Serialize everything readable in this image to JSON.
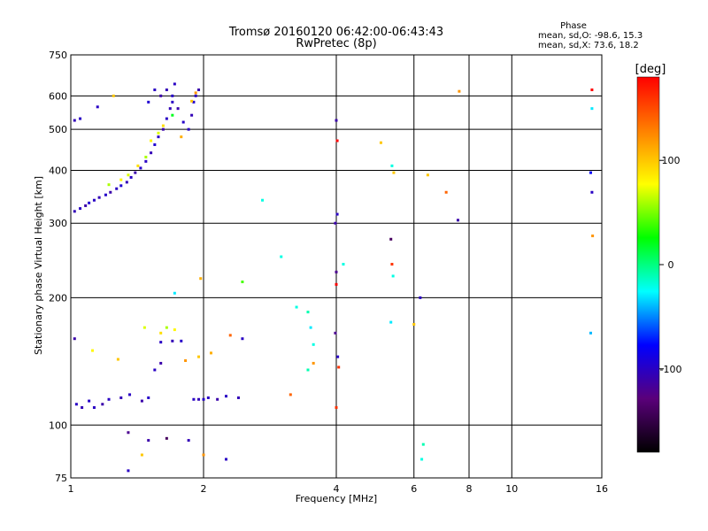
{
  "chart_data": {
    "type": "scatter",
    "title": "Tromsø 20160120 06:42:00-06:43:43",
    "subtitle": "RwPretec (8p)",
    "xlabel": "Frequency [MHz]",
    "ylabel": "Stationary phase Virtual Height [km]",
    "x_scale": "log",
    "y_scale": "log",
    "xlim": [
      1,
      16
    ],
    "ylim": [
      75,
      750
    ],
    "x_ticks": [
      1,
      2,
      4,
      6,
      8,
      10,
      16
    ],
    "x_tick_labels": [
      "1",
      "2",
      "4",
      "6",
      "8",
      "10",
      "16"
    ],
    "y_ticks": [
      75,
      100,
      200,
      300,
      400,
      500,
      600,
      750
    ],
    "y_tick_labels": [
      "75",
      "100",
      "200",
      "300",
      "400",
      "500",
      "600",
      "750"
    ],
    "grid": true,
    "phase_stats": {
      "heading": "Phase",
      "o_line": "mean, sd,O:  -98.6, 15.3",
      "x_line": "mean, sd,X:  73.6, 18.2"
    },
    "colorbar": {
      "label": "[deg]",
      "range": [
        -180,
        180
      ],
      "ticks": [
        100,
        0,
        -100
      ],
      "tick_labels": [
        "100",
        "0",
        "-100"
      ],
      "stops": [
        "#000000",
        "#5a007a",
        "#0000ff",
        "#00ffff",
        "#00ff00",
        "#ffff00",
        "#ff8000",
        "#ff0000"
      ]
    },
    "series": [
      {
        "points": [
          [
            1.02,
            320,
            -105
          ],
          [
            1.05,
            325,
            -100
          ],
          [
            1.08,
            330,
            -110
          ],
          [
            1.1,
            335,
            -95
          ],
          [
            1.13,
            340,
            -100
          ],
          [
            1.16,
            345,
            -105
          ],
          [
            1.2,
            350,
            -98
          ],
          [
            1.23,
            355,
            -110
          ],
          [
            1.27,
            362,
            -100
          ],
          [
            1.3,
            368,
            -95
          ],
          [
            1.34,
            375,
            -105
          ],
          [
            1.37,
            385,
            -100
          ],
          [
            1.4,
            395,
            -110
          ],
          [
            1.44,
            405,
            -98
          ],
          [
            1.48,
            420,
            -100
          ],
          [
            1.52,
            440,
            -105
          ],
          [
            1.55,
            460,
            -95
          ],
          [
            1.58,
            480,
            -100
          ],
          [
            1.62,
            500,
            -110
          ],
          [
            1.65,
            530,
            -100
          ],
          [
            1.68,
            560,
            -105
          ],
          [
            1.7,
            600,
            -98
          ],
          [
            1.72,
            640,
            -100
          ],
          [
            1.6,
            600,
            -110
          ],
          [
            1.55,
            620,
            -100
          ],
          [
            1.5,
            580,
            -95
          ],
          [
            1.65,
            620,
            -105
          ],
          [
            1.7,
            580,
            -100
          ],
          [
            1.75,
            560,
            -110
          ],
          [
            1.8,
            520,
            -98
          ],
          [
            1.85,
            500,
            -100
          ],
          [
            1.88,
            540,
            -105
          ],
          [
            1.9,
            580,
            -95
          ],
          [
            1.92,
            600,
            -100
          ],
          [
            1.95,
            620,
            -110
          ],
          [
            1.22,
            370,
            60
          ],
          [
            1.3,
            380,
            80
          ],
          [
            1.35,
            390,
            70
          ],
          [
            1.42,
            410,
            90
          ],
          [
            1.48,
            430,
            60
          ],
          [
            1.52,
            470,
            80
          ],
          [
            1.58,
            490,
            70
          ],
          [
            1.62,
            510,
            90
          ],
          [
            1.7,
            540,
            20
          ],
          [
            1.78,
            480,
            110
          ],
          [
            1.25,
            600,
            100
          ],
          [
            1.15,
            565,
            -100
          ],
          [
            1.02,
            525,
            -105
          ],
          [
            1.05,
            530,
            -100
          ],
          [
            1.03,
            112,
            -100
          ],
          [
            1.06,
            110,
            -105
          ],
          [
            1.1,
            114,
            -98
          ],
          [
            1.13,
            110,
            -100
          ],
          [
            1.18,
            112,
            -110
          ],
          [
            1.22,
            115,
            -100
          ],
          [
            1.3,
            116,
            -105
          ],
          [
            1.36,
            118,
            -100
          ],
          [
            1.45,
            114,
            -110
          ],
          [
            1.5,
            116,
            -98
          ],
          [
            1.02,
            160,
            -110
          ],
          [
            1.12,
            150,
            80
          ],
          [
            1.28,
            143,
            100
          ],
          [
            1.47,
            170,
            70
          ],
          [
            1.6,
            165,
            90
          ],
          [
            1.65,
            170,
            60
          ],
          [
            1.72,
            168,
            80
          ],
          [
            1.6,
            157,
            -100
          ],
          [
            1.7,
            158,
            -105
          ],
          [
            1.78,
            158,
            -98
          ],
          [
            1.55,
            135,
            -100
          ],
          [
            1.6,
            140,
            -110
          ],
          [
            1.82,
            142,
            120
          ],
          [
            1.95,
            145,
            100
          ],
          [
            2.08,
            148,
            110
          ],
          [
            1.9,
            115,
            -100
          ],
          [
            1.95,
            115,
            -105
          ],
          [
            2.0,
            115,
            -98
          ],
          [
            2.05,
            116,
            -100
          ],
          [
            2.15,
            115,
            -110
          ],
          [
            2.25,
            117,
            -100
          ],
          [
            2.4,
            116,
            -105
          ],
          [
            2.45,
            160,
            -100
          ],
          [
            2.3,
            163,
            140
          ],
          [
            1.97,
            222,
            110
          ],
          [
            1.72,
            205,
            -30
          ],
          [
            2.45,
            218,
            40
          ],
          [
            2.72,
            340,
            -20
          ],
          [
            3.0,
            250,
            -20
          ],
          [
            3.15,
            118,
            140
          ],
          [
            3.25,
            190,
            -20
          ],
          [
            3.45,
            185,
            -10
          ],
          [
            3.5,
            170,
            -30
          ],
          [
            3.55,
            155,
            -20
          ],
          [
            3.55,
            140,
            120
          ],
          [
            3.45,
            135,
            -10
          ],
          [
            3.98,
            165,
            -120
          ],
          [
            4.0,
            215,
            180
          ],
          [
            4.0,
            230,
            -120
          ],
          [
            3.98,
            300,
            -110
          ],
          [
            4.02,
            315,
            -100
          ],
          [
            4.02,
            470,
            180
          ],
          [
            4.0,
            525,
            -110
          ],
          [
            4.0,
            110,
            160
          ],
          [
            4.03,
            145,
            -100
          ],
          [
            4.05,
            137,
            160
          ],
          [
            4.15,
            240,
            -20
          ],
          [
            5.32,
            275,
            -140
          ],
          [
            5.35,
            240,
            160
          ],
          [
            5.38,
            225,
            -20
          ],
          [
            5.32,
            175,
            -30
          ],
          [
            5.35,
            410,
            -20
          ],
          [
            5.05,
            465,
            100
          ],
          [
            5.4,
            395,
            100
          ],
          [
            6.0,
            173,
            100
          ],
          [
            6.2,
            200,
            -100
          ],
          [
            6.3,
            90,
            -10
          ],
          [
            6.25,
            83,
            -20
          ],
          [
            6.45,
            390,
            100
          ],
          [
            7.1,
            355,
            140
          ],
          [
            7.55,
            305,
            -110
          ],
          [
            7.6,
            615,
            120
          ],
          [
            15.2,
            620,
            180
          ],
          [
            15.1,
            395,
            -80
          ],
          [
            15.2,
            355,
            -100
          ],
          [
            15.25,
            280,
            120
          ],
          [
            15.1,
            165,
            -40
          ],
          [
            15.2,
            560,
            -30
          ],
          [
            1.45,
            85,
            100
          ],
          [
            1.35,
            78,
            -100
          ],
          [
            1.5,
            92,
            -110
          ],
          [
            1.65,
            93,
            -140
          ],
          [
            1.85,
            92,
            -105
          ],
          [
            2.0,
            85,
            120
          ],
          [
            2.25,
            83,
            -100
          ],
          [
            1.35,
            96,
            -120
          ],
          [
            1.88,
            583,
            100
          ],
          [
            1.92,
            610,
            120
          ]
        ]
      }
    ]
  }
}
